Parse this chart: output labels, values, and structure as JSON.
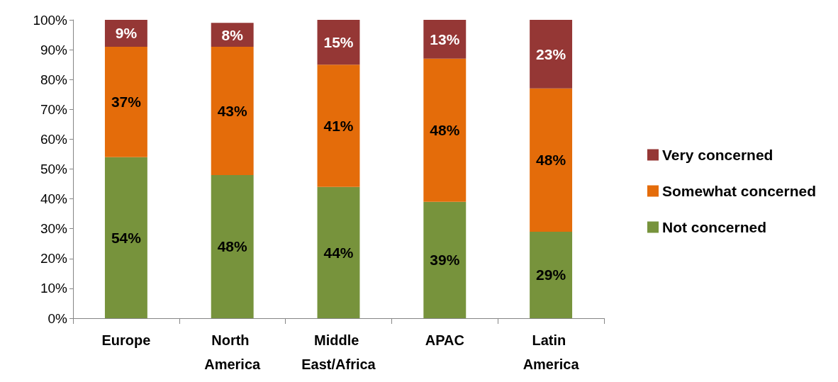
{
  "chart_data": {
    "type": "bar",
    "stacked": true,
    "categories": [
      "Europe",
      "North America",
      "Middle East/Africa",
      "APAC",
      "Latin America"
    ],
    "series": [
      {
        "name": "Not concerned",
        "color": "#77933c",
        "values": [
          54,
          48,
          44,
          39,
          29
        ],
        "value_labels": [
          "54%",
          "48%",
          "44%",
          "39%",
          "29%"
        ]
      },
      {
        "name": "Somewhat concerned",
        "color": "#e46c0a",
        "values": [
          37,
          43,
          41,
          48,
          48
        ],
        "value_labels": [
          "37%",
          "43%",
          "41%",
          "48%",
          "48%"
        ]
      },
      {
        "name": "Very concerned",
        "color": "#953735",
        "values": [
          9,
          8,
          15,
          13,
          23
        ],
        "value_labels": [
          "9%",
          "8%",
          "15%",
          "13%",
          "23%"
        ]
      }
    ],
    "ylim": [
      0,
      100
    ],
    "yticks": [
      {
        "value": 0,
        "label": "0%"
      },
      {
        "value": 10,
        "label": "10%"
      },
      {
        "value": 20,
        "label": "20%"
      },
      {
        "value": 30,
        "label": "30%"
      },
      {
        "value": 40,
        "label": "40%"
      },
      {
        "value": 50,
        "label": "50%"
      },
      {
        "value": 60,
        "label": "60%"
      },
      {
        "value": 70,
        "label": "70%"
      },
      {
        "value": 80,
        "label": "80%"
      },
      {
        "value": 90,
        "label": "90%"
      },
      {
        "value": 100,
        "label": "100%"
      }
    ],
    "grid": false,
    "legend": "right"
  }
}
